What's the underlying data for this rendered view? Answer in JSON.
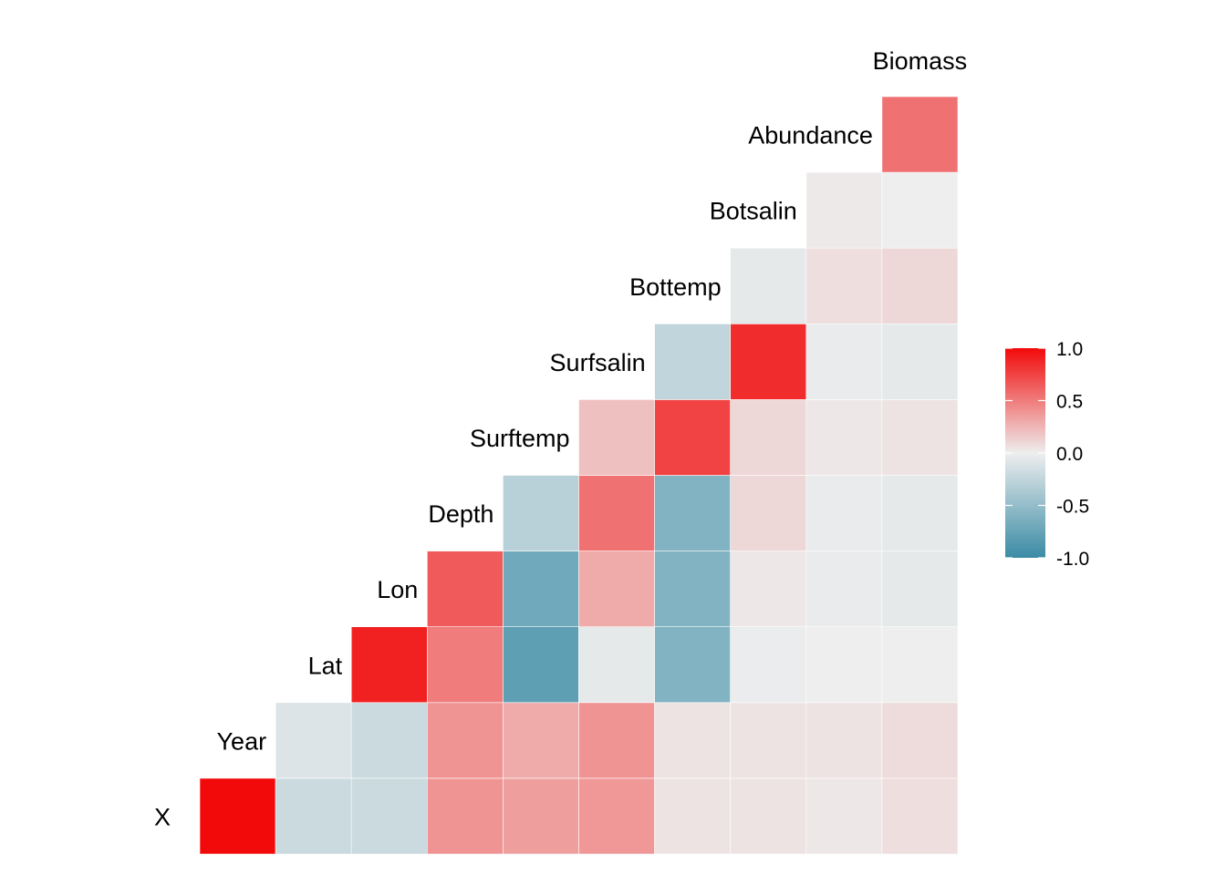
{
  "chart_data": {
    "type": "heatmap",
    "title": "",
    "xlabel": "",
    "ylabel": "",
    "variables": [
      "X",
      "Year",
      "Lat",
      "Lon",
      "Depth",
      "Surftemp",
      "Surfsalin",
      "Bottemp",
      "Botsalin",
      "Abundance",
      "Biomass"
    ],
    "correlations": [
      {
        "row": "Year",
        "col": "X",
        "value": -0.1
      },
      {
        "row": "Lat",
        "col": "X",
        "value": -0.2
      },
      {
        "row": "Lat",
        "col": "Year",
        "value": -0.2
      },
      {
        "row": "Lon",
        "col": "X",
        "value": -0.2
      },
      {
        "row": "Lon",
        "col": "Year",
        "value": -0.2
      },
      {
        "row": "Lon",
        "col": "Lat",
        "value": 0.9
      },
      {
        "row": "Depth",
        "col": "X",
        "value": 0.4
      },
      {
        "row": "Depth",
        "col": "Year",
        "value": 0.4
      },
      {
        "row": "Depth",
        "col": "Lat",
        "value": 0.5
      },
      {
        "row": "Depth",
        "col": "Lon",
        "value": 0.65
      },
      {
        "row": "Surftemp",
        "col": "X",
        "value": 0.35
      },
      {
        "row": "Surftemp",
        "col": "Year",
        "value": 0.3
      },
      {
        "row": "Surftemp",
        "col": "Lat",
        "value": -0.8
      },
      {
        "row": "Surftemp",
        "col": "Lon",
        "value": -0.7
      },
      {
        "row": "Surftemp",
        "col": "Depth",
        "value": -0.3
      },
      {
        "row": "Surfsalin",
        "col": "X",
        "value": 0.38
      },
      {
        "row": "Surfsalin",
        "col": "Year",
        "value": 0.4
      },
      {
        "row": "Surfsalin",
        "col": "Lat",
        "value": -0.05
      },
      {
        "row": "Surfsalin",
        "col": "Lon",
        "value": 0.3
      },
      {
        "row": "Surfsalin",
        "col": "Depth",
        "value": 0.55
      },
      {
        "row": "Surfsalin",
        "col": "Surftemp",
        "value": 0.2
      },
      {
        "row": "Bottemp",
        "col": "X",
        "value": 0.05
      },
      {
        "row": "Bottemp",
        "col": "Year",
        "value": 0.05
      },
      {
        "row": "Bottemp",
        "col": "Lat",
        "value": -0.6
      },
      {
        "row": "Bottemp",
        "col": "Lon",
        "value": -0.6
      },
      {
        "row": "Bottemp",
        "col": "Depth",
        "value": -0.6
      },
      {
        "row": "Bottemp",
        "col": "Surftemp",
        "value": 0.75
      },
      {
        "row": "Bottemp",
        "col": "Surfsalin",
        "value": -0.25
      },
      {
        "row": "Botsalin",
        "col": "X",
        "value": 0.05
      },
      {
        "row": "Botsalin",
        "col": "Year",
        "value": 0.05
      },
      {
        "row": "Botsalin",
        "col": "Lat",
        "value": -0.02
      },
      {
        "row": "Botsalin",
        "col": "Lon",
        "value": 0.03
      },
      {
        "row": "Botsalin",
        "col": "Depth",
        "value": 0.1
      },
      {
        "row": "Botsalin",
        "col": "Surftemp",
        "value": 0.1
      },
      {
        "row": "Botsalin",
        "col": "Surfsalin",
        "value": 0.85
      },
      {
        "row": "Botsalin",
        "col": "Bottemp",
        "value": -0.05
      },
      {
        "row": "Abundance",
        "col": "X",
        "value": 0.03
      },
      {
        "row": "Abundance",
        "col": "Year",
        "value": 0.05
      },
      {
        "row": "Abundance",
        "col": "Lat",
        "value": 0.0
      },
      {
        "row": "Abundance",
        "col": "Lon",
        "value": -0.03
      },
      {
        "row": "Abundance",
        "col": "Depth",
        "value": -0.03
      },
      {
        "row": "Abundance",
        "col": "Surftemp",
        "value": 0.03
      },
      {
        "row": "Abundance",
        "col": "Surfsalin",
        "value": -0.03
      },
      {
        "row": "Abundance",
        "col": "Bottemp",
        "value": 0.07
      },
      {
        "row": "Abundance",
        "col": "Botsalin",
        "value": 0.02
      },
      {
        "row": "Biomass",
        "col": "X",
        "value": 0.07
      },
      {
        "row": "Biomass",
        "col": "Year",
        "value": 0.08
      },
      {
        "row": "Biomass",
        "col": "Lat",
        "value": 0.0
      },
      {
        "row": "Biomass",
        "col": "Lon",
        "value": -0.05
      },
      {
        "row": "Biomass",
        "col": "Depth",
        "value": -0.05
      },
      {
        "row": "Biomass",
        "col": "Surftemp",
        "value": 0.05
      },
      {
        "row": "Biomass",
        "col": "Surfsalin",
        "value": -0.05
      },
      {
        "row": "Biomass",
        "col": "Bottemp",
        "value": 0.1
      },
      {
        "row": "Biomass",
        "col": "Botsalin",
        "value": 0.0
      },
      {
        "row": "Biomass",
        "col": "Abundance",
        "value": 0.55
      }
    ],
    "diagonal": [
      {
        "name": "X",
        "value": 1.0
      },
      {
        "name": "Year",
        "value": -0.1
      },
      {
        "name": "Lat",
        "value": 0.9
      },
      {
        "name": "Lon",
        "value": 0.65
      },
      {
        "name": "Depth",
        "value": -0.3
      },
      {
        "name": "Surftemp",
        "value": 0.2
      },
      {
        "name": "Surfsalin",
        "value": -0.25
      },
      {
        "name": "Bottemp",
        "value": -0.05
      },
      {
        "name": "Botsalin",
        "value": 0.02
      },
      {
        "name": "Abundance",
        "value": 0.55
      }
    ],
    "color_scale": {
      "low": "#3A8BA5",
      "mid": "#EEEEEE",
      "high": "#F20A0A",
      "range": [
        -1.0,
        1.0
      ]
    },
    "legend": {
      "placement": "right",
      "ticks": [
        "1.0",
        "0.5",
        "0.0",
        "-0.5",
        "-1.0"
      ],
      "tick_values": [
        1.0,
        0.5,
        0.0,
        -0.5,
        -1.0
      ]
    },
    "grid": false
  }
}
